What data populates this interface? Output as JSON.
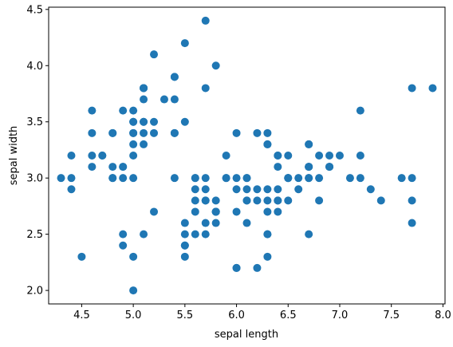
{
  "chart_data": {
    "type": "scatter",
    "title": "",
    "xlabel": "sepal length",
    "ylabel": "sepal width",
    "xlim": [
      4.18,
      8.02
    ],
    "ylim": [
      1.88,
      4.52
    ],
    "grid": false,
    "xticks": [
      "4.5",
      "5.0",
      "5.5",
      "6.0",
      "6.5",
      "7.0",
      "7.5",
      "8.0"
    ],
    "yticks": [
      "2.0",
      "2.5",
      "3.0",
      "3.5",
      "4.0",
      "4.5"
    ],
    "marker_color": "#1f77b4",
    "points": [
      [
        5.1,
        3.5
      ],
      [
        4.9,
        3.0
      ],
      [
        4.7,
        3.2
      ],
      [
        4.6,
        3.1
      ],
      [
        5.0,
        3.6
      ],
      [
        5.4,
        3.9
      ],
      [
        4.6,
        3.4
      ],
      [
        5.0,
        3.4
      ],
      [
        4.4,
        2.9
      ],
      [
        4.9,
        3.1
      ],
      [
        5.4,
        3.7
      ],
      [
        4.8,
        3.4
      ],
      [
        4.8,
        3.0
      ],
      [
        4.3,
        3.0
      ],
      [
        5.8,
        4.0
      ],
      [
        5.7,
        4.4
      ],
      [
        5.4,
        3.9
      ],
      [
        5.1,
        3.5
      ],
      [
        5.7,
        3.8
      ],
      [
        5.1,
        3.8
      ],
      [
        5.4,
        3.4
      ],
      [
        5.1,
        3.7
      ],
      [
        4.6,
        3.6
      ],
      [
        5.1,
        3.3
      ],
      [
        4.8,
        3.4
      ],
      [
        5.0,
        3.0
      ],
      [
        5.0,
        3.4
      ],
      [
        5.2,
        3.5
      ],
      [
        5.2,
        3.4
      ],
      [
        4.7,
        3.2
      ],
      [
        4.8,
        3.1
      ],
      [
        5.4,
        3.4
      ],
      [
        5.2,
        4.1
      ],
      [
        5.5,
        4.2
      ],
      [
        4.9,
        3.1
      ],
      [
        5.0,
        3.2
      ],
      [
        5.5,
        3.5
      ],
      [
        4.9,
        3.6
      ],
      [
        4.4,
        3.0
      ],
      [
        5.1,
        3.4
      ],
      [
        5.0,
        3.5
      ],
      [
        4.5,
        2.3
      ],
      [
        4.4,
        3.2
      ],
      [
        5.0,
        3.5
      ],
      [
        5.1,
        3.8
      ],
      [
        4.8,
        3.0
      ],
      [
        5.1,
        3.8
      ],
      [
        4.6,
        3.2
      ],
      [
        5.3,
        3.7
      ],
      [
        5.0,
        3.3
      ],
      [
        7.0,
        3.2
      ],
      [
        6.4,
        3.2
      ],
      [
        6.9,
        3.1
      ],
      [
        5.5,
        2.3
      ],
      [
        6.5,
        2.8
      ],
      [
        5.7,
        2.8
      ],
      [
        6.3,
        3.3
      ],
      [
        4.9,
        2.4
      ],
      [
        6.6,
        2.9
      ],
      [
        5.2,
        2.7
      ],
      [
        5.0,
        2.0
      ],
      [
        5.9,
        3.0
      ],
      [
        6.0,
        2.2
      ],
      [
        6.1,
        2.9
      ],
      [
        5.6,
        2.9
      ],
      [
        6.7,
        3.1
      ],
      [
        5.6,
        3.0
      ],
      [
        5.8,
        2.7
      ],
      [
        6.2,
        2.2
      ],
      [
        5.6,
        2.5
      ],
      [
        5.9,
        3.2
      ],
      [
        6.1,
        2.8
      ],
      [
        6.3,
        2.5
      ],
      [
        6.1,
        2.8
      ],
      [
        6.4,
        2.9
      ],
      [
        6.6,
        3.0
      ],
      [
        6.8,
        2.8
      ],
      [
        6.7,
        3.0
      ],
      [
        6.0,
        2.9
      ],
      [
        5.7,
        2.6
      ],
      [
        5.5,
        2.4
      ],
      [
        5.5,
        2.4
      ],
      [
        5.8,
        2.7
      ],
      [
        6.0,
        2.7
      ],
      [
        5.4,
        3.0
      ],
      [
        6.0,
        3.4
      ],
      [
        6.7,
        3.1
      ],
      [
        6.3,
        2.3
      ],
      [
        5.6,
        3.0
      ],
      [
        5.5,
        2.5
      ],
      [
        5.5,
        2.6
      ],
      [
        6.1,
        3.0
      ],
      [
        5.8,
        2.6
      ],
      [
        5.0,
        2.3
      ],
      [
        5.6,
        2.7
      ],
      [
        5.7,
        3.0
      ],
      [
        5.7,
        2.9
      ],
      [
        6.2,
        2.9
      ],
      [
        5.1,
        2.5
      ],
      [
        5.7,
        2.8
      ],
      [
        6.3,
        3.3
      ],
      [
        5.8,
        2.7
      ],
      [
        7.1,
        3.0
      ],
      [
        6.3,
        2.9
      ],
      [
        6.5,
        3.0
      ],
      [
        7.6,
        3.0
      ],
      [
        4.9,
        2.5
      ],
      [
        7.3,
        2.9
      ],
      [
        6.7,
        2.5
      ],
      [
        7.2,
        3.6
      ],
      [
        6.5,
        3.2
      ],
      [
        6.4,
        2.7
      ],
      [
        6.8,
        3.0
      ],
      [
        5.7,
        2.5
      ],
      [
        5.8,
        2.8
      ],
      [
        6.4,
        3.2
      ],
      [
        6.5,
        3.0
      ],
      [
        7.7,
        3.8
      ],
      [
        7.7,
        2.6
      ],
      [
        6.0,
        2.2
      ],
      [
        6.9,
        3.2
      ],
      [
        5.6,
        2.8
      ],
      [
        7.7,
        2.8
      ],
      [
        6.3,
        2.7
      ],
      [
        6.7,
        3.3
      ],
      [
        7.2,
        3.2
      ],
      [
        6.2,
        2.8
      ],
      [
        6.1,
        3.0
      ],
      [
        6.4,
        2.8
      ],
      [
        7.2,
        3.0
      ],
      [
        7.4,
        2.8
      ],
      [
        7.9,
        3.8
      ],
      [
        6.4,
        2.8
      ],
      [
        6.3,
        2.8
      ],
      [
        6.1,
        2.6
      ],
      [
        7.7,
        3.0
      ],
      [
        6.3,
        3.4
      ],
      [
        6.4,
        3.1
      ],
      [
        6.0,
        3.0
      ],
      [
        6.9,
        3.1
      ],
      [
        6.7,
        3.1
      ],
      [
        6.9,
        3.1
      ],
      [
        5.8,
        2.7
      ],
      [
        6.8,
        3.2
      ],
      [
        6.7,
        3.3
      ],
      [
        6.7,
        3.0
      ],
      [
        6.3,
        2.5
      ],
      [
        6.5,
        3.0
      ],
      [
        6.2,
        3.4
      ],
      [
        5.9,
        3.0
      ]
    ]
  }
}
